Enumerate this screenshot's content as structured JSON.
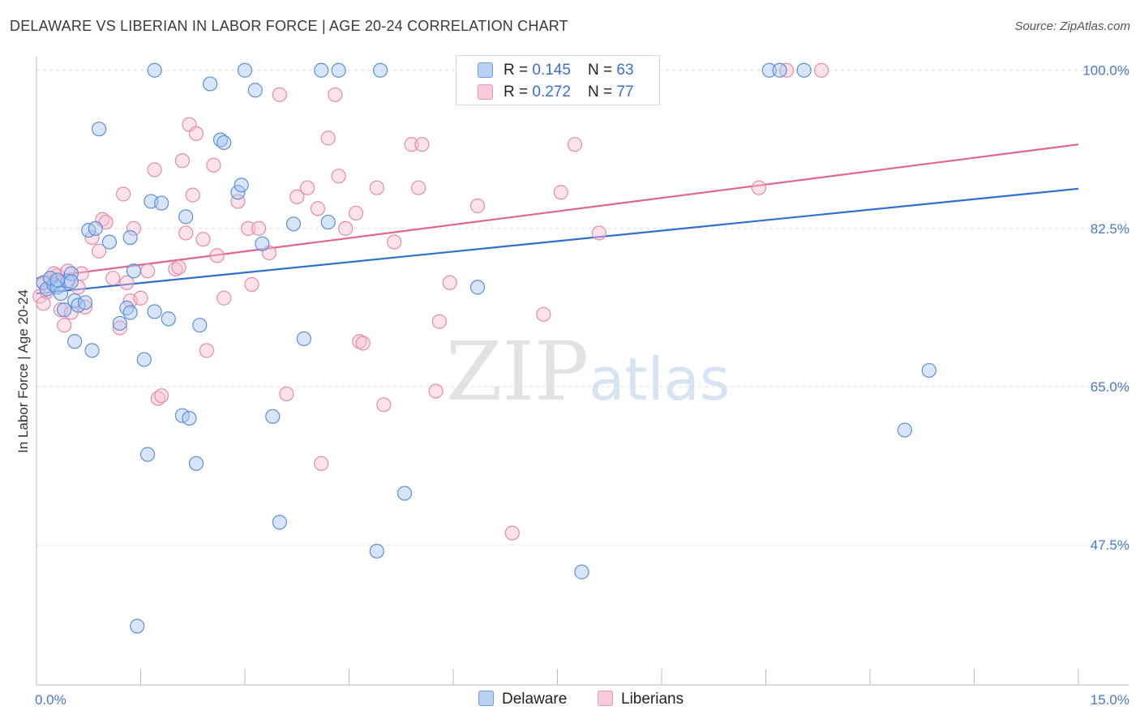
{
  "header": {
    "title": "DELAWARE VS LIBERIAN IN LABOR FORCE | AGE 20-24 CORRELATION CHART",
    "source": "Source: ZipAtlas.com"
  },
  "watermark": {
    "zip": "ZIP",
    "atlas": "atlas"
  },
  "legend": {
    "rows": [
      {
        "r_label": "R = ",
        "r_value": "0.145",
        "n_label": "N = ",
        "n_value": "63"
      },
      {
        "r_label": "R = ",
        "r_value": "0.272",
        "n_label": "N = ",
        "n_value": "77"
      }
    ],
    "bottom": [
      "Delaware",
      "Liberians"
    ]
  },
  "chart_data": {
    "type": "scatter",
    "title": "DELAWARE VS LIBERIAN IN LABOR FORCE | AGE 20-24 CORRELATION CHART",
    "xlabel": "",
    "ylabel": "In Labor Force | Age 20-24",
    "xlim": [
      0,
      15
    ],
    "ylim": [
      32,
      101.5
    ],
    "x_tick_labels": [
      "0.0%",
      "15.0%"
    ],
    "y_ticks": [
      47.5,
      65.0,
      82.5,
      100.0
    ],
    "y_tick_labels": [
      "47.5%",
      "65.0%",
      "82.5%",
      "100.0%"
    ],
    "grid": true,
    "legend_position": "top-center",
    "colors": {
      "delaware_fill": "#a9c6f2",
      "delaware_stroke": "#5b8fd8",
      "delaware_line": "#2f6fcf",
      "liberians_fill": "#f8bfd2",
      "liberians_stroke": "#e68aa9",
      "liberians_line": "#e06592"
    },
    "series": [
      {
        "name": "Delaware",
        "trend": {
          "x": [
            0,
            15
          ],
          "y": [
            75.3,
            86.9
          ]
        },
        "points": [
          [
            0.1,
            76.5
          ],
          [
            0.15,
            75.8
          ],
          [
            0.25,
            76.3
          ],
          [
            0.3,
            76.0
          ],
          [
            0.35,
            75.3
          ],
          [
            0.45,
            76.7
          ],
          [
            0.4,
            73.5
          ],
          [
            0.5,
            77.5
          ],
          [
            0.55,
            74.5
          ],
          [
            0.6,
            74.0
          ],
          [
            0.75,
            82.3
          ],
          [
            0.85,
            82.5
          ],
          [
            0.9,
            93.5
          ],
          [
            1.05,
            81.0
          ],
          [
            1.3,
            73.7
          ],
          [
            1.35,
            73.2
          ],
          [
            1.4,
            77.8
          ],
          [
            1.55,
            68.0
          ],
          [
            1.6,
            57.5
          ],
          [
            1.7,
            73.3
          ],
          [
            1.65,
            85.5
          ],
          [
            1.7,
            100.0
          ],
          [
            1.8,
            85.3
          ],
          [
            1.9,
            72.5
          ],
          [
            2.1,
            61.8
          ],
          [
            2.15,
            83.8
          ],
          [
            2.2,
            61.5
          ],
          [
            2.3,
            56.5
          ],
          [
            2.35,
            71.8
          ],
          [
            2.5,
            98.5
          ],
          [
            2.65,
            92.3
          ],
          [
            2.7,
            92.0
          ],
          [
            2.9,
            86.5
          ],
          [
            2.95,
            87.3
          ],
          [
            3.0,
            100.0
          ],
          [
            3.15,
            97.8
          ],
          [
            3.25,
            80.8
          ],
          [
            3.4,
            61.7
          ],
          [
            3.5,
            50.0
          ],
          [
            3.7,
            83.0
          ],
          [
            3.85,
            70.3
          ],
          [
            4.1,
            100.0
          ],
          [
            4.2,
            83.2
          ],
          [
            4.35,
            100.0
          ],
          [
            4.9,
            46.8
          ],
          [
            4.95,
            100.0
          ],
          [
            5.3,
            53.2
          ],
          [
            6.35,
            76.0
          ],
          [
            7.85,
            44.5
          ],
          [
            10.55,
            100.0
          ],
          [
            10.7,
            100.0
          ],
          [
            11.05,
            100.0
          ],
          [
            12.5,
            60.2
          ],
          [
            12.85,
            66.8
          ],
          [
            0.2,
            77.0
          ],
          [
            0.3,
            76.8
          ],
          [
            0.5,
            76.6
          ],
          [
            0.7,
            74.3
          ],
          [
            1.2,
            72.0
          ],
          [
            1.45,
            38.5
          ],
          [
            1.35,
            81.5
          ],
          [
            0.55,
            70.0
          ],
          [
            0.8,
            69.0
          ]
        ]
      },
      {
        "name": "Liberians",
        "trend": {
          "x": [
            0,
            15
          ],
          "y": [
            77.0,
            91.8
          ]
        },
        "points": [
          [
            0.05,
            75.0
          ],
          [
            0.1,
            76.5
          ],
          [
            0.2,
            77.0
          ],
          [
            0.3,
            77.3
          ],
          [
            0.35,
            73.5
          ],
          [
            0.4,
            71.8
          ],
          [
            0.45,
            77.8
          ],
          [
            0.6,
            76.0
          ],
          [
            0.65,
            77.5
          ],
          [
            0.8,
            81.5
          ],
          [
            0.9,
            80.0
          ],
          [
            0.95,
            83.5
          ],
          [
            1.0,
            83.2
          ],
          [
            1.1,
            77.0
          ],
          [
            1.2,
            71.5
          ],
          [
            1.3,
            76.5
          ],
          [
            1.35,
            74.5
          ],
          [
            1.4,
            82.5
          ],
          [
            1.5,
            74.8
          ],
          [
            1.6,
            77.8
          ],
          [
            1.7,
            89.0
          ],
          [
            1.75,
            63.7
          ],
          [
            1.8,
            64.0
          ],
          [
            2.0,
            78.0
          ],
          [
            2.05,
            78.2
          ],
          [
            2.1,
            90.0
          ],
          [
            2.2,
            94.0
          ],
          [
            2.25,
            86.2
          ],
          [
            2.3,
            93.0
          ],
          [
            2.4,
            81.3
          ],
          [
            2.45,
            69.0
          ],
          [
            2.55,
            89.5
          ],
          [
            2.6,
            79.5
          ],
          [
            2.7,
            74.8
          ],
          [
            2.9,
            85.5
          ],
          [
            3.05,
            82.5
          ],
          [
            3.1,
            76.3
          ],
          [
            3.2,
            82.5
          ],
          [
            3.35,
            79.8
          ],
          [
            3.5,
            97.3
          ],
          [
            3.6,
            64.2
          ],
          [
            3.75,
            86.0
          ],
          [
            3.9,
            87.0
          ],
          [
            4.05,
            84.7
          ],
          [
            4.1,
            56.5
          ],
          [
            4.2,
            92.5
          ],
          [
            4.3,
            97.3
          ],
          [
            4.35,
            88.3
          ],
          [
            4.45,
            82.5
          ],
          [
            4.6,
            84.2
          ],
          [
            4.65,
            70.0
          ],
          [
            4.7,
            69.8
          ],
          [
            4.9,
            87.0
          ],
          [
            5.0,
            63.0
          ],
          [
            5.15,
            81.0
          ],
          [
            5.4,
            91.8
          ],
          [
            5.5,
            87.0
          ],
          [
            5.55,
            91.8
          ],
          [
            5.75,
            64.5
          ],
          [
            5.95,
            76.5
          ],
          [
            5.8,
            72.2
          ],
          [
            6.35,
            85.0
          ],
          [
            6.85,
            48.8
          ],
          [
            7.3,
            73.0
          ],
          [
            7.55,
            86.5
          ],
          [
            7.75,
            91.8
          ],
          [
            8.1,
            82.0
          ],
          [
            10.4,
            87.0
          ],
          [
            10.8,
            100.0
          ],
          [
            11.3,
            100.0
          ],
          [
            0.25,
            77.5
          ],
          [
            0.15,
            75.5
          ],
          [
            0.5,
            73.2
          ],
          [
            0.7,
            73.8
          ],
          [
            1.25,
            86.3
          ],
          [
            2.15,
            82.0
          ],
          [
            0.1,
            74.2
          ]
        ]
      }
    ]
  }
}
